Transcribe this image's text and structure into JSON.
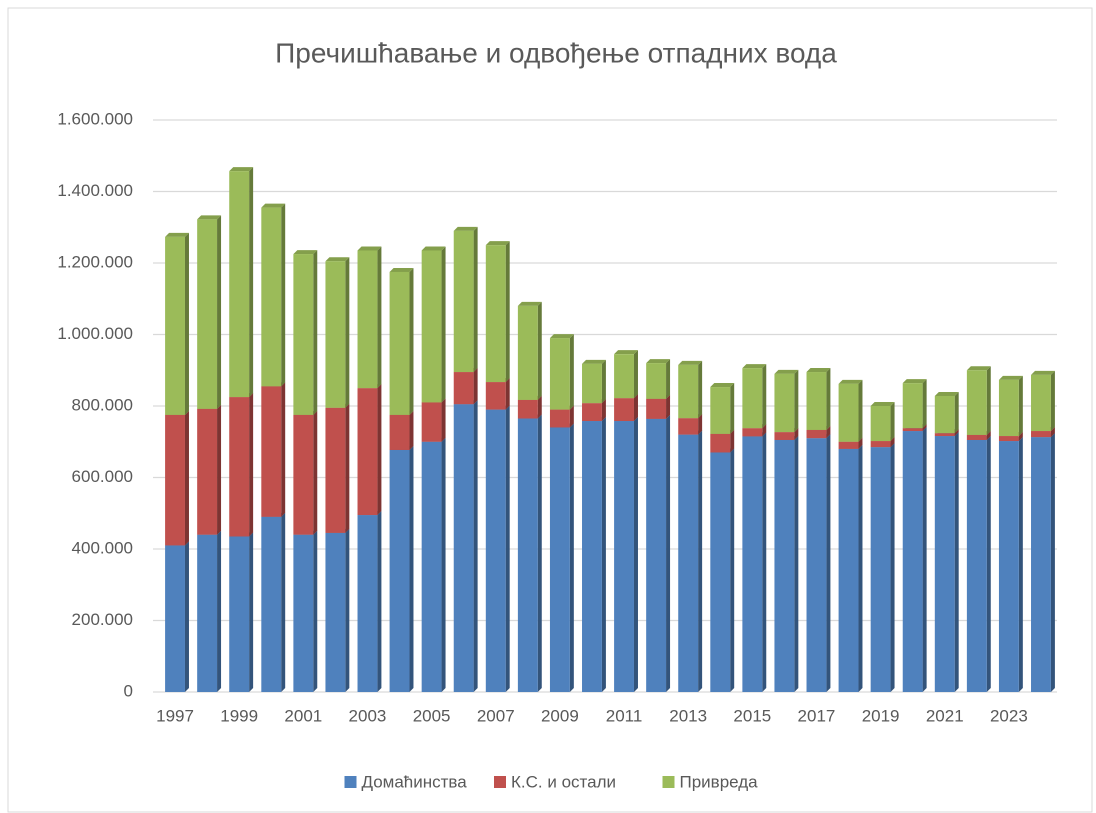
{
  "chart_data": {
    "type": "stacked_bar",
    "title": "Пречишћавање и одвођење отпадних вода",
    "categories": [
      "1997",
      null,
      "1999",
      null,
      "2001",
      null,
      "2003",
      null,
      "2005",
      null,
      "2007",
      null,
      "2009",
      null,
      "2011",
      null,
      "2013",
      null,
      "2015",
      null,
      "2017",
      null,
      "2019",
      null,
      "2021",
      null,
      "2023",
      null
    ],
    "series": [
      {
        "name": "Домаћинства",
        "color": "#4f81bd",
        "values": [
          410000,
          440000,
          435000,
          490000,
          440000,
          445000,
          495000,
          677000,
          700000,
          805000,
          790000,
          765000,
          740000,
          758000,
          758000,
          764000,
          720000,
          670000,
          715000,
          705000,
          710000,
          680000,
          685000,
          730000,
          716000,
          705000,
          702000,
          713000
        ]
      },
      {
        "name": "К.С. и остали",
        "color": "#c0504d",
        "values": [
          365000,
          352000,
          390000,
          365000,
          335000,
          350000,
          355000,
          98000,
          110000,
          90000,
          77000,
          52000,
          50000,
          50000,
          64000,
          56000,
          46000,
          52000,
          23000,
          22000,
          23000,
          20000,
          17000,
          8000,
          8000,
          14000,
          14000,
          17000
        ]
      },
      {
        "name": "Привреда",
        "color": "#9bbb59",
        "values": [
          498000,
          530000,
          632000,
          500000,
          450000,
          410000,
          385000,
          400000,
          425000,
          395000,
          383000,
          263000,
          200000,
          110000,
          123000,
          100000,
          149000,
          131000,
          168000,
          163000,
          162000,
          162000,
          98000,
          126000,
          104000,
          181000,
          157000,
          157000
        ]
      }
    ],
    "ylim": [
      0,
      1600000
    ],
    "yticks": [
      0,
      {
        "value": 200000,
        "label": "200.000"
      },
      {
        "value": 400000,
        "label": "400.000"
      },
      {
        "value": 600000,
        "label": "600.000"
      },
      {
        "value": 800000,
        "label": "800.000"
      },
      {
        "value": 1000000,
        "label": "1.000.000"
      },
      {
        "value": 1200000,
        "label": "1.200.000"
      },
      {
        "value": 1400000,
        "label": "1.400.000"
      },
      {
        "value": 1600000,
        "label": "1.600.000"
      }
    ],
    "grid": true,
    "legend": "bottom"
  }
}
